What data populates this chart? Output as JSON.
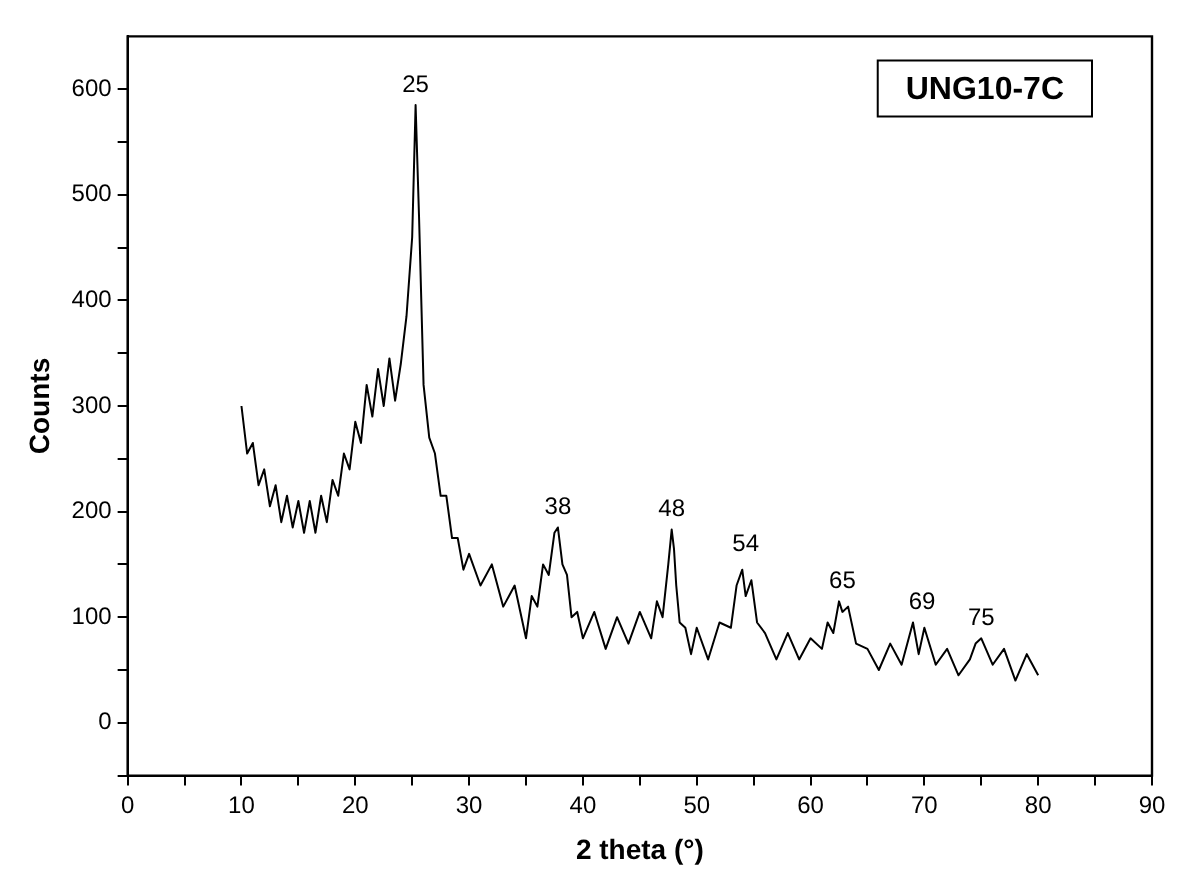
{
  "chart_data": {
    "type": "line",
    "xlabel": "2 theta (°)",
    "ylabel": "Counts",
    "x": [
      10,
      10.5,
      11,
      11.5,
      12,
      12.5,
      13,
      13.5,
      14,
      14.5,
      15,
      15.5,
      16,
      16.5,
      17,
      17.5,
      18,
      18.5,
      19,
      19.5,
      20,
      20.5,
      21,
      21.5,
      22,
      22.5,
      23,
      23.5,
      24,
      24.5,
      25,
      25.3,
      25.6,
      26,
      26.5,
      27,
      27.5,
      28,
      28.5,
      29,
      29.5,
      30,
      31,
      32,
      33,
      34,
      35,
      35.5,
      36,
      36.5,
      37,
      37.5,
      37.8,
      38.2,
      38.6,
      39,
      39.5,
      40,
      41,
      42,
      43,
      44,
      45,
      46,
      46.5,
      47,
      47.5,
      47.8,
      48,
      48.2,
      48.5,
      49,
      49.5,
      50,
      51,
      52,
      53,
      53.5,
      54,
      54.3,
      54.8,
      55.3,
      56,
      57,
      58,
      59,
      60,
      61,
      61.5,
      62,
      62.5,
      62.8,
      63.3,
      64,
      65,
      66,
      67,
      68,
      69,
      69.5,
      70,
      71,
      72,
      73,
      74,
      74.5,
      75,
      75.4,
      76,
      77,
      78,
      79,
      80
    ],
    "series": [
      {
        "color": "#000000",
        "values": [
          300,
          255,
          265,
          225,
          240,
          205,
          225,
          190,
          215,
          185,
          210,
          180,
          210,
          180,
          215,
          190,
          230,
          215,
          255,
          240,
          285,
          265,
          320,
          290,
          335,
          300,
          345,
          305,
          340,
          385,
          460,
          585,
          480,
          320,
          270,
          255,
          215,
          215,
          175,
          175,
          145,
          160,
          130,
          150,
          110,
          130,
          80,
          120,
          110,
          150,
          140,
          180,
          185,
          150,
          140,
          100,
          105,
          80,
          105,
          70,
          100,
          75,
          105,
          80,
          115,
          100,
          150,
          183,
          165,
          130,
          95,
          90,
          65,
          90,
          60,
          95,
          90,
          130,
          145,
          120,
          135,
          95,
          85,
          60,
          85,
          60,
          80,
          70,
          95,
          85,
          115,
          105,
          110,
          75,
          70,
          50,
          75,
          55,
          95,
          65,
          90,
          55,
          70,
          45,
          60,
          75,
          80,
          70,
          55,
          70,
          40,
          65,
          45
        ]
      }
    ],
    "xlim": [
      0,
      90
    ],
    "xticks": [
      0,
      {
        "value": 5,
        "label": null
      },
      10,
      {
        "value": 15,
        "label": null
      },
      20,
      {
        "value": 25,
        "label": null
      },
      30,
      {
        "value": 35,
        "label": null
      },
      40,
      {
        "value": 45,
        "label": null
      },
      50,
      {
        "value": 55,
        "label": null
      },
      60,
      {
        "value": 65,
        "label": null
      },
      70,
      {
        "value": 75,
        "label": null
      },
      80,
      {
        "value": 85,
        "label": null
      },
      90
    ],
    "ylim": [
      -50,
      650
    ],
    "yticks": [
      {
        "value": -50,
        "label": null
      },
      0,
      {
        "value": 50,
        "label": null
      },
      100,
      {
        "value": 150,
        "label": null
      },
      200,
      {
        "value": 250,
        "label": null
      },
      300,
      {
        "value": 350,
        "label": null
      },
      400,
      {
        "value": 450,
        "label": null
      },
      500,
      {
        "value": 550,
        "label": null
      },
      600
    ],
    "grid": false,
    "legend": false,
    "marker": "none",
    "line_style": "solid",
    "annotations": [
      {
        "text": "25",
        "x": 25.3,
        "y": 585
      },
      {
        "text": "38",
        "x": 37.8,
        "y": 185
      },
      {
        "text": "48",
        "x": 47.8,
        "y": 183
      },
      {
        "text": "54",
        "x": 54.3,
        "y": 150
      },
      {
        "text": "65",
        "x": 62.8,
        "y": 115
      },
      {
        "text": "69",
        "x": 69.8,
        "y": 95
      },
      {
        "text": "75",
        "x": 75,
        "y": 80
      },
      "UNG10-7C"
    ]
  }
}
